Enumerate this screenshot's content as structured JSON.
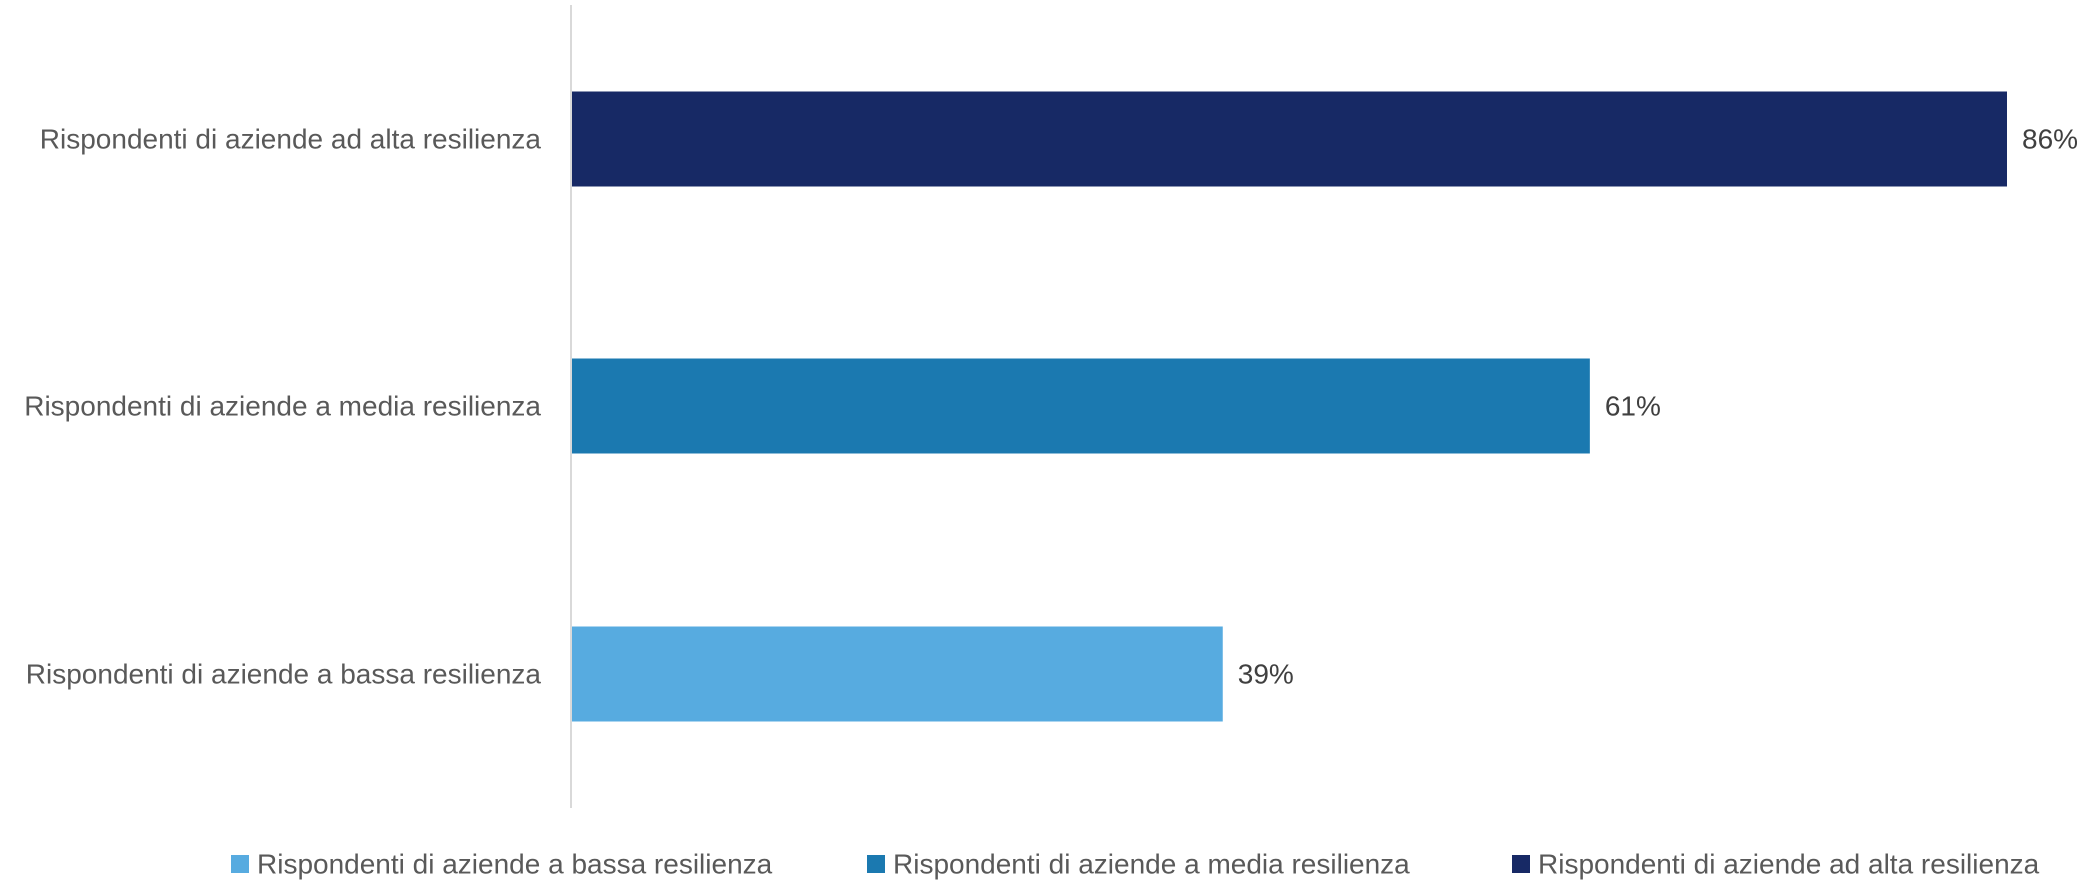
{
  "chart_data": {
    "type": "bar",
    "orientation": "horizontal",
    "categories": [
      "Rispondenti di aziende ad alta resilienza",
      "Rispondenti di aziende a media resilienza",
      "Rispondenti di aziende a bassa resilienza"
    ],
    "values": [
      86,
      61,
      39
    ],
    "data_labels": [
      "86%",
      "61%",
      "39%"
    ],
    "value_unit": "%",
    "xlim": [
      0,
      86
    ],
    "grid": false,
    "colors": [
      "#172965",
      "#1b79b0",
      "#57abe0"
    ],
    "legend": {
      "position": "bottom",
      "entries": [
        {
          "label": "Rispondenti di aziende a bassa resilienza",
          "color": "#57abe0"
        },
        {
          "label": "Rispondenti di aziende a media resilienza",
          "color": "#1b79b0"
        },
        {
          "label": "Rispondenti di aziende ad alta resilienza",
          "color": "#172965"
        }
      ]
    },
    "title": "",
    "xlabel": "",
    "ylabel": ""
  }
}
